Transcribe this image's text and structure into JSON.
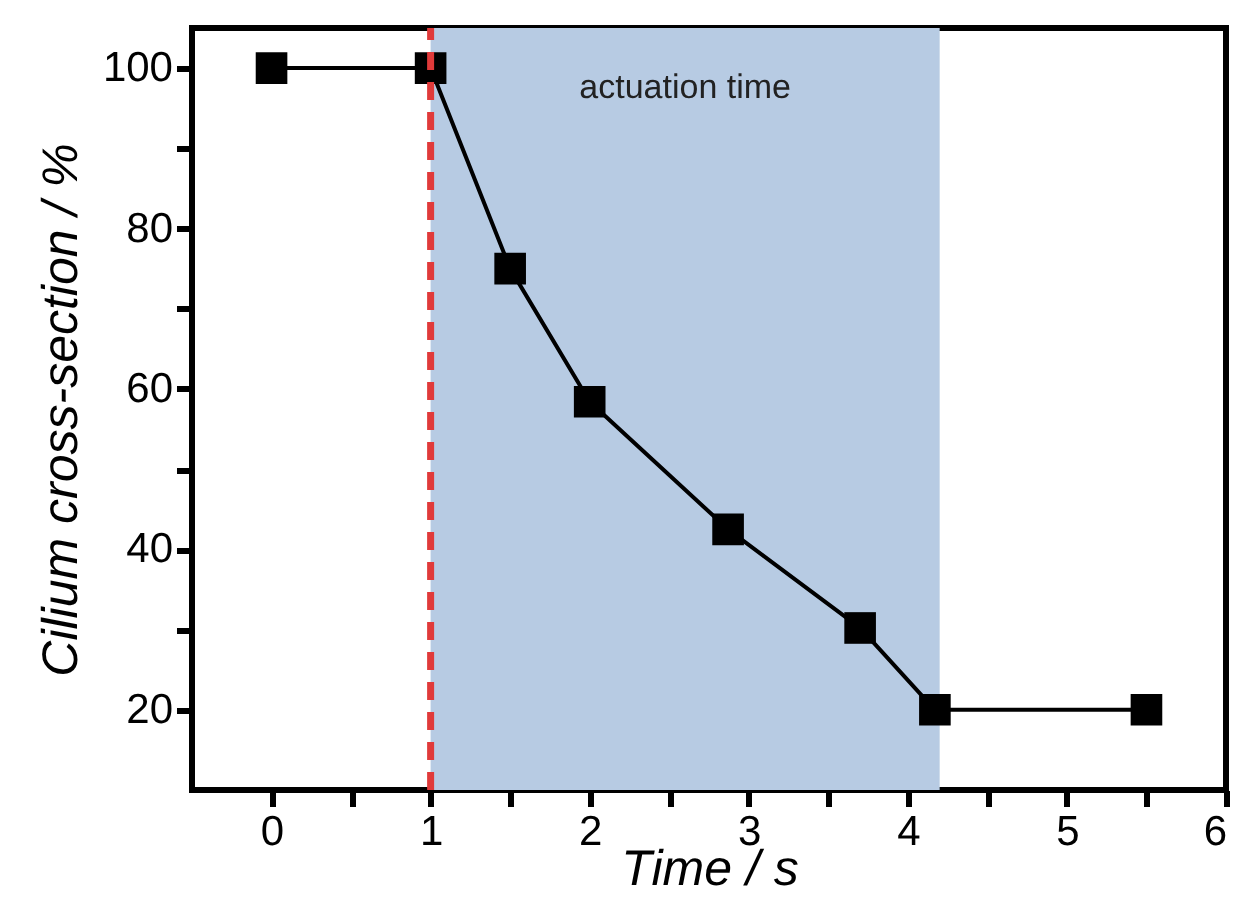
{
  "chart_data": {
    "type": "line",
    "xlabel": "Time / s",
    "ylabel": "Cilium cross-section / %",
    "x": [
      0,
      1,
      1.5,
      2,
      2.87,
      3.7,
      4.17,
      5.5
    ],
    "series": [
      {
        "color": "#000000",
        "values": [
          100,
          100,
          75,
          58.4,
          42.5,
          30.2,
          20,
          20
        ]
      }
    ],
    "xlim": [
      -0.5,
      6
    ],
    "xticks": [
      0,
      {
        "value": 0.5,
        "label": null
      },
      1,
      {
        "value": 1.5,
        "label": null
      },
      2,
      {
        "value": 2.5,
        "label": null
      },
      3,
      {
        "value": 3.5,
        "label": null
      },
      4,
      {
        "value": 4.5,
        "label": null
      },
      5,
      {
        "value": 5.5,
        "label": null
      },
      6
    ],
    "ylim": [
      10,
      105
    ],
    "yticks": [
      20,
      {
        "value": 30,
        "label": null
      },
      40,
      {
        "value": 50,
        "label": null
      },
      60,
      {
        "value": 70,
        "label": null
      },
      80,
      {
        "value": 90,
        "label": null
      },
      100
    ],
    "ref_lines": [
      {
        "axis": "x",
        "value": 1,
        "color": "#e03a3a",
        "line_style": "dashed"
      }
    ],
    "bands": [
      {
        "axis": "x",
        "from": 1,
        "to": 4.2,
        "color": "#b7cbe3",
        "label": "actuation time"
      }
    ],
    "marker": "square",
    "line_style": "solid",
    "grid": false
  }
}
